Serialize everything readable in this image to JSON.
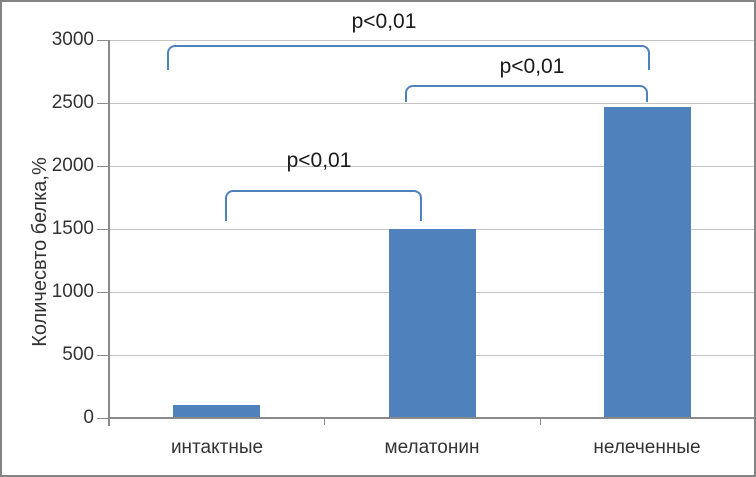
{
  "chart_data": {
    "type": "bar",
    "categories": [
      "интактные",
      "мелатонин",
      "нелеченные"
    ],
    "values": [
      100,
      1500,
      2470
    ],
    "title": "",
    "xlabel": "",
    "ylabel": "Количесвто белка,%",
    "ylim": [
      0,
      3000
    ],
    "ytick_step": 500,
    "ytick_labels": [
      "0",
      "500",
      "1000",
      "1500",
      "2000",
      "2500",
      "3000"
    ],
    "grid": true,
    "legend": false,
    "bar_color": "#4F81BD",
    "bracket_color": "#4F81BD",
    "annotations": [
      {
        "label": "p<0,01",
        "between": [
          "интактные",
          "нелеченные"
        ]
      },
      {
        "label": "p<0,01",
        "between": [
          "мелатонин",
          "нелеченные"
        ]
      },
      {
        "label": "p<0,01",
        "between": [
          "интактные",
          "мелатонин"
        ]
      }
    ]
  }
}
